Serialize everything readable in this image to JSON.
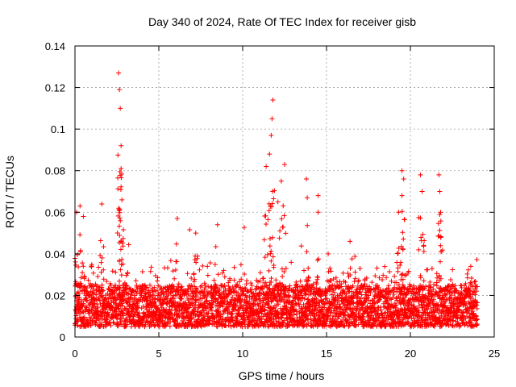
{
  "chart_data": {
    "type": "scatter",
    "title": "Day 340 of 2024, Rate Of TEC Index for receiver gisb",
    "xlabel": "GPS time / hours",
    "ylabel": "ROTI / TECUs",
    "xlim": [
      0,
      25
    ],
    "ylim": [
      0,
      0.14
    ],
    "xticks": [
      "0",
      "5",
      "10",
      "15",
      "20",
      "25"
    ],
    "yticks": [
      "0",
      "0.02",
      "0.04",
      "0.06",
      "0.08",
      "0.1",
      "0.12",
      "0.14"
    ],
    "grid": true,
    "marker": "+",
    "color": "#ff0000",
    "series": [
      {
        "name": "ROTI",
        "x_range": [
          0,
          24
        ],
        "baseline_band": [
          0.005,
          0.025
        ],
        "spikes": [
          {
            "x": 0.1,
            "y": 0.06
          },
          {
            "x": 0.3,
            "y": 0.063
          },
          {
            "x": 0.5,
            "y": 0.058
          },
          {
            "x": 1.6,
            "y": 0.064
          },
          {
            "x": 2.6,
            "y": 0.127
          },
          {
            "x": 2.65,
            "y": 0.119
          },
          {
            "x": 2.7,
            "y": 0.11
          },
          {
            "x": 2.75,
            "y": 0.092
          },
          {
            "x": 2.75,
            "y": 0.081
          },
          {
            "x": 2.8,
            "y": 0.066
          },
          {
            "x": 6.1,
            "y": 0.057
          },
          {
            "x": 7.2,
            "y": 0.05
          },
          {
            "x": 8.5,
            "y": 0.054
          },
          {
            "x": 11.4,
            "y": 0.082
          },
          {
            "x": 11.6,
            "y": 0.088
          },
          {
            "x": 11.8,
            "y": 0.114
          },
          {
            "x": 11.75,
            "y": 0.105
          },
          {
            "x": 11.7,
            "y": 0.097
          },
          {
            "x": 12.1,
            "y": 0.065
          },
          {
            "x": 12.3,
            "y": 0.075
          },
          {
            "x": 12.5,
            "y": 0.083
          },
          {
            "x": 13.8,
            "y": 0.076
          },
          {
            "x": 13.85,
            "y": 0.067
          },
          {
            "x": 14.5,
            "y": 0.068
          },
          {
            "x": 14.5,
            "y": 0.06
          },
          {
            "x": 15.1,
            "y": 0.04
          },
          {
            "x": 16.4,
            "y": 0.046
          },
          {
            "x": 19.3,
            "y": 0.06
          },
          {
            "x": 19.5,
            "y": 0.08
          },
          {
            "x": 19.6,
            "y": 0.076
          },
          {
            "x": 19.5,
            "y": 0.068
          },
          {
            "x": 20.6,
            "y": 0.078
          },
          {
            "x": 20.7,
            "y": 0.07
          },
          {
            "x": 21.7,
            "y": 0.078
          },
          {
            "x": 21.75,
            "y": 0.07
          },
          {
            "x": 21.8,
            "y": 0.06
          },
          {
            "x": 23.6,
            "y": 0.034
          }
        ]
      }
    ]
  }
}
